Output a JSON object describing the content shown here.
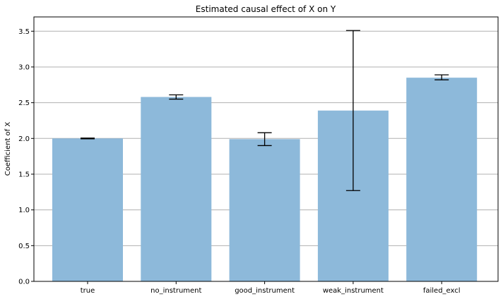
{
  "chart_data": {
    "type": "bar",
    "title": "Estimated causal effect of X on Y",
    "xlabel": "",
    "ylabel": "Coefficient of X",
    "categories": [
      "true",
      "no_instrument",
      "good_instrument",
      "weak_instrument",
      "failed_excl"
    ],
    "values": [
      2.0,
      2.58,
      1.99,
      2.39,
      2.85
    ],
    "error_low": [
      1.995,
      2.55,
      1.9,
      1.27,
      2.82
    ],
    "error_high": [
      2.005,
      2.61,
      2.08,
      3.51,
      2.89
    ],
    "ylim": [
      0,
      3.7
    ],
    "yticks": [
      "0.0",
      "0.5",
      "1.0",
      "1.5",
      "2.0",
      "2.5",
      "3.0",
      "3.5"
    ],
    "grid": "y",
    "legend": "none",
    "colors": {
      "bar": "#8db9da",
      "error_bar": "#000000",
      "grid": "#b0b0b0",
      "axis": "#000000"
    }
  }
}
